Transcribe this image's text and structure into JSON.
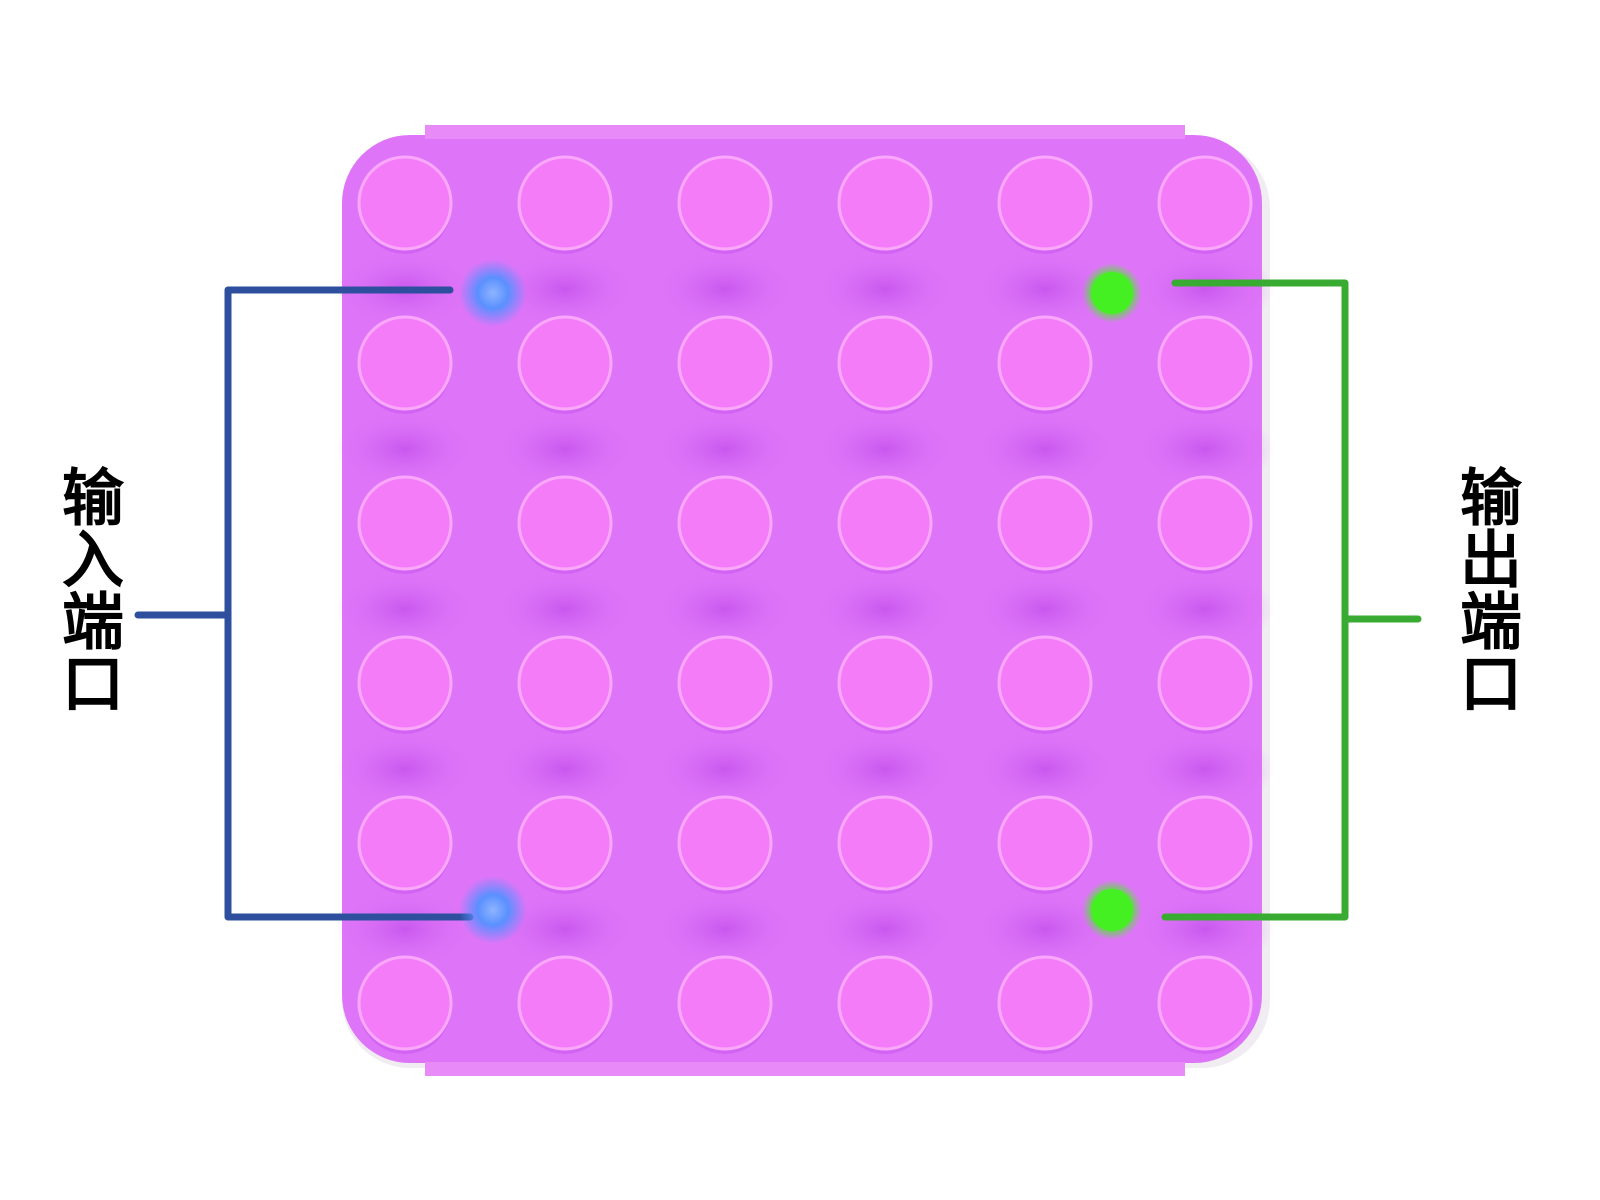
{
  "labels": {
    "input": "输入端口",
    "output": "输出端口"
  },
  "colors": {
    "board": "#de75f8",
    "board_shadow": "#c855ee",
    "stud": "#f57cf8",
    "stud_rim": "#f9a8fb",
    "input_port": "#5a90ff",
    "output_port": "#44f022",
    "input_bracket": "#2e4f9e",
    "output_bracket": "#3aab32",
    "label_text": "#000000"
  },
  "board": {
    "stud_rows": 6,
    "stud_cols": 6
  },
  "ports": {
    "input": {
      "count": 2
    },
    "output": {
      "count": 2
    }
  }
}
